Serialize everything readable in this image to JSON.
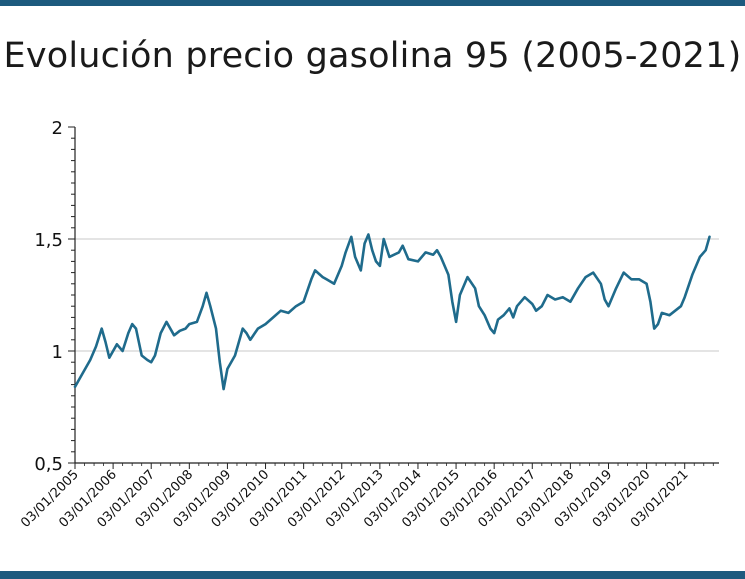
{
  "chart_data": {
    "type": "line",
    "title": "Evolución precio gasolina 95 (2005-2021)",
    "xlabel": "",
    "ylabel": "",
    "ylim": [
      0.5,
      2
    ],
    "y_ticks": [
      0.5,
      1,
      1.5,
      2
    ],
    "y_tick_labels": [
      "0,5",
      "1",
      "1,5",
      "2"
    ],
    "grid": "horizontal at 1 and 1,5",
    "x_ticks": [
      "03/01/2005",
      "03/01/2006",
      "03/01/2007",
      "03/01/2008",
      "03/01/2009",
      "03/01/2010",
      "03/01/2011",
      "03/01/2012",
      "03/01/2013",
      "03/01/2014",
      "03/01/2015",
      "03/01/2016",
      "03/01/2017",
      "03/01/2018",
      "03/01/2019",
      "03/01/2020",
      "03/01/2021"
    ],
    "line_color": "#1f6b8c",
    "x": [
      2005.0,
      2005.2,
      2005.4,
      2005.55,
      2005.7,
      2005.8,
      2005.9,
      2006.0,
      2006.1,
      2006.25,
      2006.4,
      2006.5,
      2006.6,
      2006.75,
      2006.9,
      2007.0,
      2007.1,
      2007.25,
      2007.4,
      2007.6,
      2007.75,
      2007.9,
      2008.0,
      2008.2,
      2008.35,
      2008.45,
      2008.55,
      2008.7,
      2008.8,
      2008.9,
      2009.0,
      2009.2,
      2009.4,
      2009.5,
      2009.6,
      2009.8,
      2010.0,
      2010.2,
      2010.4,
      2010.6,
      2010.8,
      2011.0,
      2011.2,
      2011.3,
      2011.5,
      2011.6,
      2011.8,
      2012.0,
      2012.1,
      2012.25,
      2012.35,
      2012.5,
      2012.6,
      2012.7,
      2012.8,
      2012.9,
      2013.0,
      2013.1,
      2013.25,
      2013.5,
      2013.6,
      2013.75,
      2014.0,
      2014.2,
      2014.4,
      2014.5,
      2014.6,
      2014.8,
      2014.9,
      2015.0,
      2015.1,
      2015.3,
      2015.5,
      2015.6,
      2015.75,
      2015.9,
      2016.0,
      2016.1,
      2016.25,
      2016.4,
      2016.5,
      2016.6,
      2016.8,
      2017.0,
      2017.1,
      2017.25,
      2017.4,
      2017.6,
      2017.8,
      2018.0,
      2018.2,
      2018.4,
      2018.6,
      2018.8,
      2018.9,
      2019.0,
      2019.2,
      2019.4,
      2019.6,
      2019.8,
      2020.0,
      2020.1,
      2020.2,
      2020.3,
      2020.4,
      2020.6,
      2020.75,
      2020.9,
      2021.0,
      2021.2,
      2021.4,
      2021.55,
      2021.65
    ],
    "values": [
      0.84,
      0.9,
      0.96,
      1.02,
      1.1,
      1.04,
      0.97,
      1.0,
      1.03,
      1.0,
      1.08,
      1.12,
      1.1,
      0.98,
      0.96,
      0.95,
      0.98,
      1.08,
      1.13,
      1.07,
      1.09,
      1.1,
      1.12,
      1.13,
      1.2,
      1.26,
      1.2,
      1.1,
      0.95,
      0.83,
      0.92,
      0.98,
      1.1,
      1.08,
      1.05,
      1.1,
      1.12,
      1.15,
      1.18,
      1.17,
      1.2,
      1.22,
      1.32,
      1.36,
      1.33,
      1.32,
      1.3,
      1.38,
      1.44,
      1.51,
      1.42,
      1.36,
      1.48,
      1.52,
      1.45,
      1.4,
      1.38,
      1.5,
      1.42,
      1.44,
      1.47,
      1.41,
      1.4,
      1.44,
      1.43,
      1.45,
      1.42,
      1.34,
      1.22,
      1.13,
      1.25,
      1.33,
      1.28,
      1.2,
      1.16,
      1.1,
      1.08,
      1.14,
      1.16,
      1.19,
      1.15,
      1.2,
      1.24,
      1.21,
      1.18,
      1.2,
      1.25,
      1.23,
      1.24,
      1.22,
      1.28,
      1.33,
      1.35,
      1.3,
      1.23,
      1.2,
      1.28,
      1.35,
      1.32,
      1.32,
      1.3,
      1.22,
      1.1,
      1.12,
      1.17,
      1.16,
      1.18,
      1.2,
      1.24,
      1.34,
      1.42,
      1.45,
      1.51
    ]
  }
}
